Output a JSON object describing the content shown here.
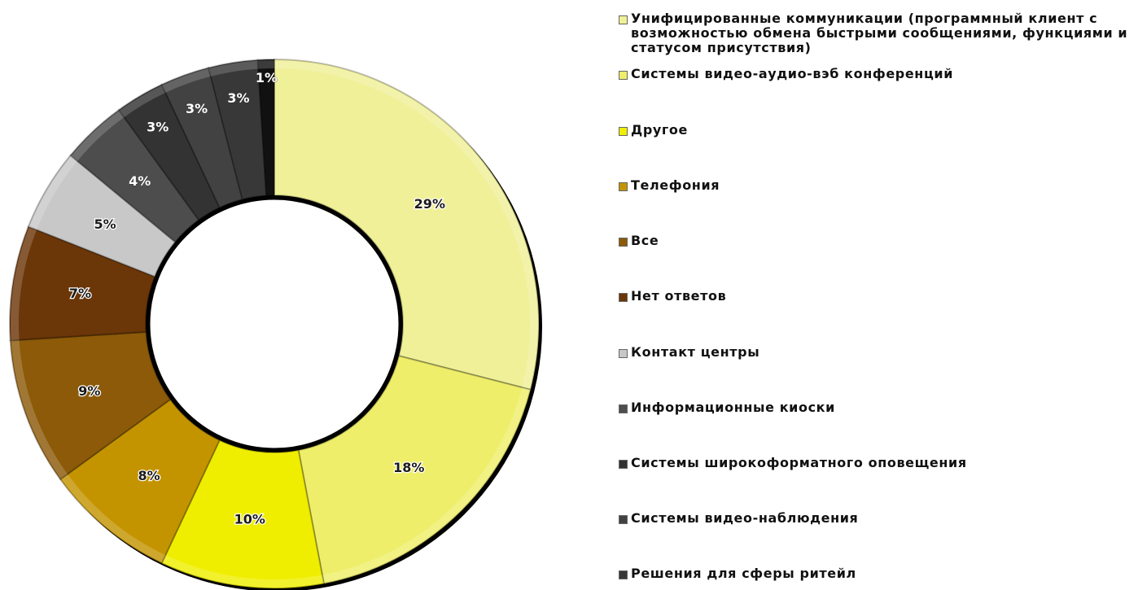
{
  "chart_data": {
    "type": "pie",
    "variant": "doughnut",
    "title": "",
    "legend_position": "right",
    "slices": [
      {
        "name": "Унифицированные коммуникации (программный клиент с возможностью обмена быстрыми сообщениями, функциями и статусом присутствия)",
        "value": 29,
        "label": "29%",
        "color": "#f0f098"
      },
      {
        "name": "Системы видео-аудио-вэб конференций",
        "value": 18,
        "label": "18%",
        "color": "#eeee6a"
      },
      {
        "name": "Другое",
        "value": 10,
        "label": "10%",
        "color": "#f0ee00"
      },
      {
        "name": "Телефония",
        "value": 8,
        "label": "8%",
        "color": "#c49400"
      },
      {
        "name": "Все",
        "value": 9,
        "label": "9%",
        "color": "#8c5a08"
      },
      {
        "name": "Нет ответов",
        "value": 7,
        "label": "7%",
        "color": "#6b3608"
      },
      {
        "name": "Контакт центры",
        "value": 5,
        "label": "5%",
        "color": "#c8c8c8"
      },
      {
        "name": "Информационные киоски",
        "value": 4,
        "label": "4%",
        "color": "#4d4d4d"
      },
      {
        "name": "Системы широкоформатного оповещения",
        "value": 3,
        "label": "3%",
        "color": "#333333"
      },
      {
        "name": "Системы видео-наблюдения",
        "value": 3,
        "label": "3%",
        "color": "#424242"
      },
      {
        "name": "Решения для сферы ритейл",
        "value": 3,
        "label": "3%",
        "color": "#383838"
      },
      {
        "name": "",
        "value": 1,
        "label": "1%",
        "color": "#111111"
      }
    ]
  }
}
